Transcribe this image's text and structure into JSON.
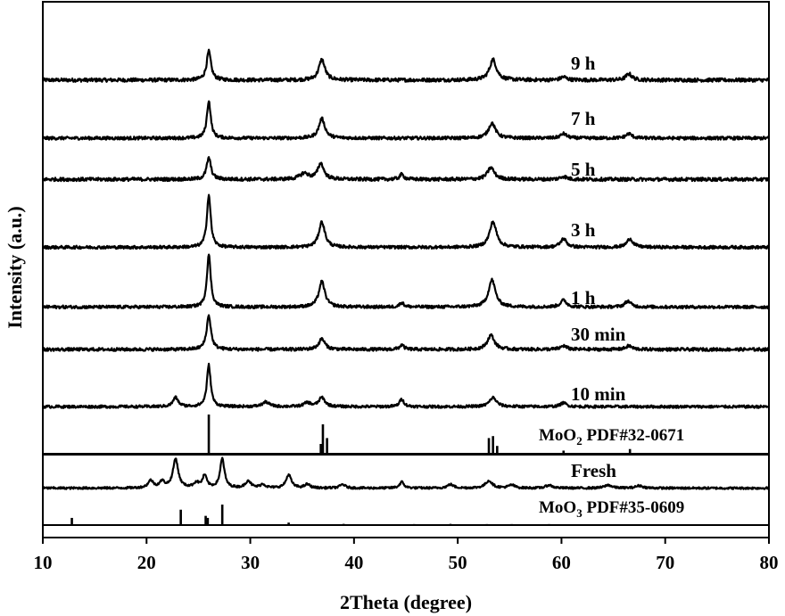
{
  "chart_data": {
    "type": "line",
    "xlabel": "2Theta (degree)",
    "ylabel": "Intensity (a.u.)",
    "xlim": [
      10,
      80
    ],
    "xticks": [
      10,
      20,
      30,
      40,
      50,
      60,
      70,
      80
    ],
    "y_units": "arbitrary (stacked, offset)",
    "series": [
      {
        "name": "9 h",
        "baseline": 0.08,
        "peaks": [
          [
            26.0,
            0.28,
            0.25
          ],
          [
            36.9,
            0.2,
            0.35
          ],
          [
            53.4,
            0.2,
            0.4
          ],
          [
            60.2,
            0.03,
            0.35
          ],
          [
            66.5,
            0.06,
            0.35
          ]
        ]
      },
      {
        "name": "7 h",
        "baseline": 0.08,
        "peaks": [
          [
            26.0,
            0.42,
            0.22
          ],
          [
            36.9,
            0.22,
            0.35
          ],
          [
            53.3,
            0.17,
            0.4
          ],
          [
            60.2,
            0.05,
            0.35
          ],
          [
            66.5,
            0.05,
            0.35
          ]
        ]
      },
      {
        "name": "5 h",
        "baseline": 0.08,
        "peaks": [
          [
            26.0,
            0.22,
            0.25
          ],
          [
            35.2,
            0.06,
            0.5
          ],
          [
            36.8,
            0.16,
            0.35
          ],
          [
            44.6,
            0.05,
            0.25
          ],
          [
            53.2,
            0.12,
            0.4
          ],
          [
            60.2,
            0.03,
            0.35
          ]
        ]
      },
      {
        "name": "3 h",
        "baseline": 0.08,
        "peaks": [
          [
            26.0,
            0.62,
            0.22
          ],
          [
            36.9,
            0.3,
            0.35
          ],
          [
            53.4,
            0.3,
            0.4
          ],
          [
            60.2,
            0.1,
            0.35
          ],
          [
            66.6,
            0.1,
            0.35
          ]
        ]
      },
      {
        "name": "1 h",
        "baseline": 0.08,
        "peaks": [
          [
            26.0,
            0.62,
            0.22
          ],
          [
            36.9,
            0.3,
            0.35
          ],
          [
            44.6,
            0.05,
            0.25
          ],
          [
            53.3,
            0.32,
            0.4
          ],
          [
            60.2,
            0.08,
            0.35
          ],
          [
            66.4,
            0.07,
            0.35
          ]
        ]
      },
      {
        "name": "30 min",
        "baseline": 0.08,
        "peaks": [
          [
            26.0,
            0.38,
            0.25
          ],
          [
            36.9,
            0.12,
            0.35
          ],
          [
            44.6,
            0.05,
            0.25
          ],
          [
            53.2,
            0.16,
            0.4
          ],
          [
            60.2,
            0.04,
            0.35
          ],
          [
            66.5,
            0.04,
            0.35
          ]
        ]
      },
      {
        "name": "10 min",
        "baseline": 0.08,
        "peaks": [
          [
            22.8,
            0.12,
            0.3
          ],
          [
            26.0,
            0.55,
            0.22
          ],
          [
            31.5,
            0.06,
            0.4
          ],
          [
            35.5,
            0.05,
            0.4
          ],
          [
            36.9,
            0.12,
            0.35
          ],
          [
            44.6,
            0.1,
            0.25
          ],
          [
            53.4,
            0.12,
            0.4
          ],
          [
            60.2,
            0.05,
            0.35
          ]
        ]
      },
      {
        "name": "Fresh",
        "baseline": 0.08,
        "peaks": [
          [
            20.4,
            0.12,
            0.3
          ],
          [
            21.5,
            0.1,
            0.3
          ],
          [
            22.8,
            0.48,
            0.3
          ],
          [
            24.8,
            0.08,
            0.3
          ],
          [
            25.6,
            0.2,
            0.25
          ],
          [
            27.3,
            0.48,
            0.25
          ],
          [
            29.8,
            0.12,
            0.3
          ],
          [
            31.2,
            0.06,
            0.3
          ],
          [
            33.7,
            0.22,
            0.3
          ],
          [
            35.5,
            0.06,
            0.3
          ],
          [
            38.9,
            0.06,
            0.3
          ],
          [
            44.6,
            0.1,
            0.25
          ],
          [
            49.3,
            0.06,
            0.35
          ],
          [
            53.0,
            0.12,
            0.4
          ],
          [
            55.2,
            0.05,
            0.35
          ],
          [
            58.8,
            0.05,
            0.35
          ],
          [
            64.5,
            0.05,
            0.4
          ],
          [
            67.5,
            0.04,
            0.4
          ]
        ]
      }
    ],
    "reference_patterns": [
      {
        "name": "MoO2 PDF#32-0671",
        "sticks": [
          [
            26.0,
            1.0
          ],
          [
            36.8,
            0.25
          ],
          [
            37.0,
            0.75
          ],
          [
            37.4,
            0.4
          ],
          [
            53.0,
            0.4
          ],
          [
            53.4,
            0.45
          ],
          [
            53.8,
            0.2
          ],
          [
            60.2,
            0.08
          ],
          [
            66.6,
            0.12
          ]
        ]
      },
      {
        "name": "MoO3 PDF#35-0609",
        "sticks": [
          [
            12.8,
            0.35
          ],
          [
            23.3,
            0.75
          ],
          [
            25.7,
            0.45
          ],
          [
            25.9,
            0.35
          ],
          [
            27.3,
            1.0
          ],
          [
            33.7,
            0.12
          ],
          [
            39.0,
            0.06
          ],
          [
            45.8,
            0.05
          ],
          [
            49.3,
            0.06
          ],
          [
            52.8,
            0.05
          ],
          [
            55.2,
            0.05
          ],
          [
            58.8,
            0.05
          ],
          [
            64.5,
            0.04
          ]
        ]
      }
    ],
    "labels": {
      "s0": "9 h",
      "s1": "7 h",
      "s2": "5 h",
      "s3": "3 h",
      "s4": "1 h",
      "s5": "30 min",
      "s6": "10 min",
      "s7": "Fresh",
      "ref1_main": "MoO",
      "ref1_sub": "2",
      "ref1_rest": " PDF#32-0671",
      "ref2_main": "MoO",
      "ref2_sub": "3",
      "ref2_rest": " PDF#35-0609"
    },
    "grid": false,
    "legend": "none (text labels beside each trace)",
    "line_color": "#000000"
  }
}
